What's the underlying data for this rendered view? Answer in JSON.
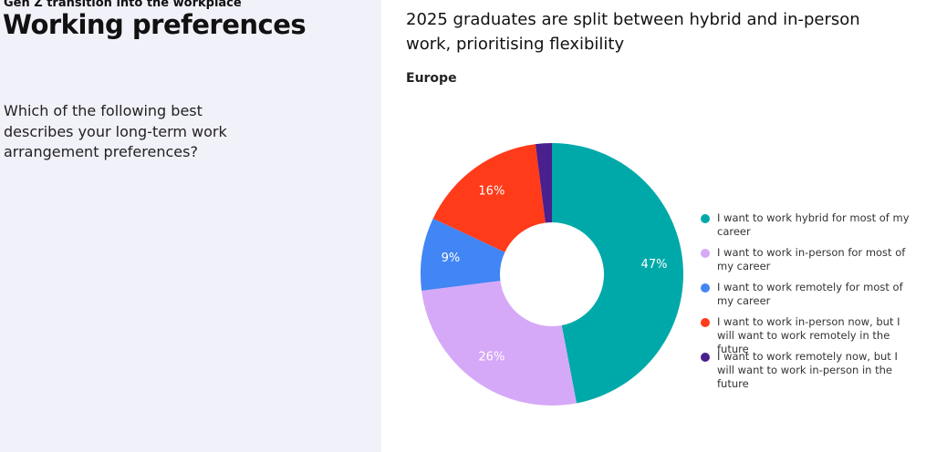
{
  "header": {
    "kicker": "Gen Z transition into the workplace",
    "title": "Working preferences",
    "question": "Which of the following best describes your long-term work arrangement preferences?"
  },
  "chart_data": {
    "type": "donut",
    "title": "2025 graduates are split between hybrid and in-person work, prioritising flexibility",
    "subtitle": "Europe",
    "categories": [
      "I want to work hybrid for most of my career",
      "I want to work in-person for most of my career",
      "I want to work remotely for most of my career",
      "I want to work in-person now, but I will want to work remotely in the future",
      "I want to work remotely now, but I will want to work in-person in the future"
    ],
    "values": [
      47,
      26,
      9,
      16,
      2
    ],
    "value_labels": [
      "47%",
      "26%",
      "9%",
      "16%",
      null
    ],
    "colors": [
      "#00a9a9",
      "#d6a9f8",
      "#4285f4",
      "#ff3b1a",
      "#4a1f8e"
    ],
    "legend": "right"
  }
}
